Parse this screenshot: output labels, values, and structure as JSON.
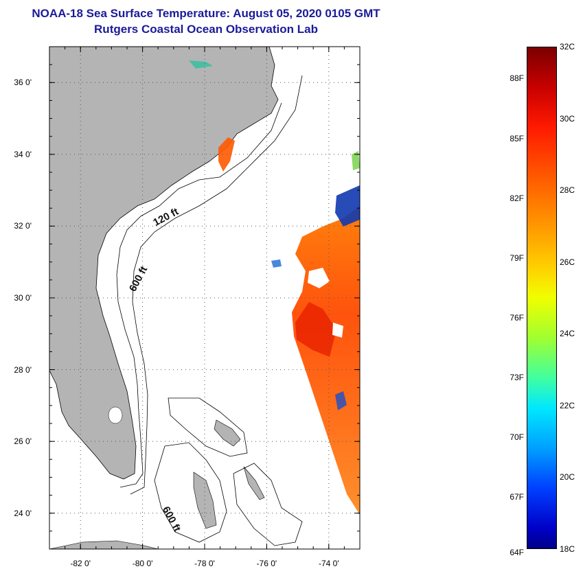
{
  "title": {
    "line1": "NOAA-18 Sea Surface Temperature:  August 05, 2020 0105 GMT",
    "line2": "Rutgers Coastal Ocean Observation Lab"
  },
  "map": {
    "lat_ticks": [
      {
        "value": 36,
        "label": "36 0'"
      },
      {
        "value": 34,
        "label": "34 0'"
      },
      {
        "value": 32,
        "label": "32 0'"
      },
      {
        "value": 30,
        "label": "30 0'"
      },
      {
        "value": 28,
        "label": "28 0'"
      },
      {
        "value": 26,
        "label": "26 0'"
      },
      {
        "value": 24,
        "label": "24 0'"
      }
    ],
    "lon_ticks": [
      {
        "value": -82,
        "label": "-82 0'"
      },
      {
        "value": -80,
        "label": "-80 0'"
      },
      {
        "value": -78,
        "label": "-78 0'"
      },
      {
        "value": -76,
        "label": "-76 0'"
      },
      {
        "value": -74,
        "label": "-74 0'"
      }
    ],
    "lat_range": [
      23,
      37
    ],
    "lon_range": [
      -83,
      -73
    ],
    "contour_labels": [
      "120 ft",
      "600 ft",
      "600 ft"
    ],
    "colors": {
      "land": "#b4b4b4",
      "grid": "#555555",
      "frame": "#000000"
    }
  },
  "colorbar": {
    "fahrenheit_labels": [
      "88F",
      "85F",
      "82F",
      "79F",
      "76F",
      "73F",
      "70F",
      "67F",
      "64F"
    ],
    "celsius_labels": [
      "32C",
      "30C",
      "28C",
      "26C",
      "24C",
      "22C",
      "20C",
      "18C"
    ],
    "range_c": [
      18,
      32
    ]
  }
}
